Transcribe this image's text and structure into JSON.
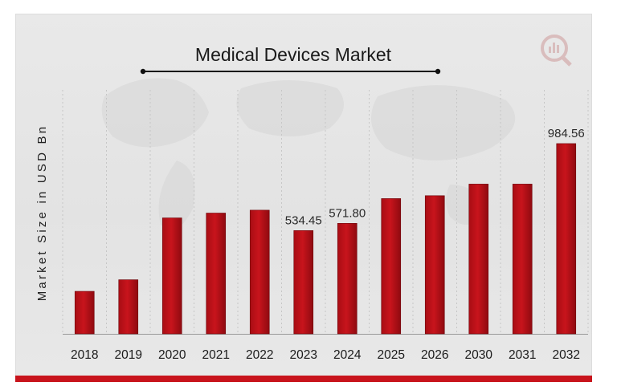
{
  "chart_data": {
    "type": "bar",
    "title": "Medical Devices Market",
    "xlabel": "",
    "ylabel": "Market Size in USD Bn",
    "categories": [
      "2018",
      "2019",
      "2020",
      "2021",
      "2022",
      "2023",
      "2024",
      "2025",
      "2026",
      "2030",
      "2031",
      "2032"
    ],
    "values": [
      220,
      280,
      600,
      625,
      640,
      534.45,
      571.8,
      700,
      715,
      775,
      775,
      984.56
    ],
    "data_labels": {
      "5": "534.45",
      "6": "571.80",
      "11": "984.56"
    },
    "bar_color": "#c8141c",
    "grid": true,
    "legend": "none"
  }
}
